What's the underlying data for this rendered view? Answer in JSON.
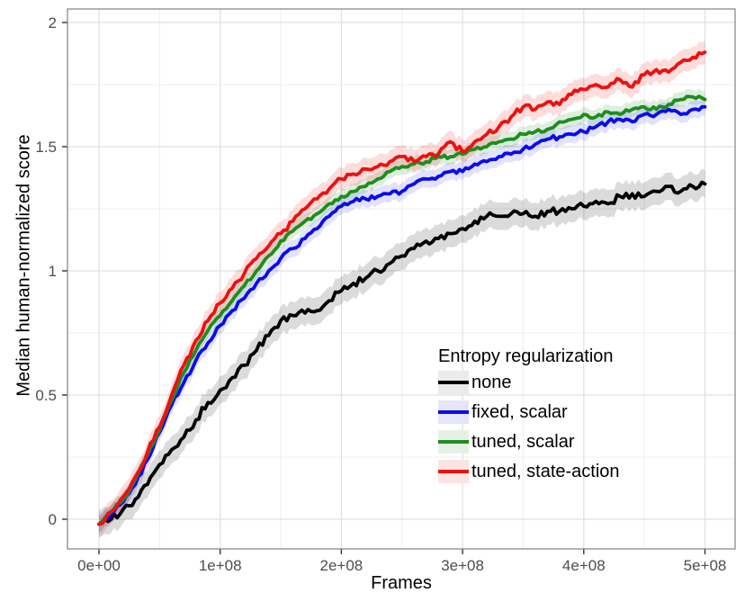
{
  "chart_data": {
    "type": "line",
    "title": "",
    "xlabel": "Frames",
    "ylabel": "Median human-normalized score",
    "x_multiplier": 100000000,
    "xlim_e8": [
      -0.26,
      5.25
    ],
    "ylim": [
      -0.12,
      2.05
    ],
    "grid": {
      "major": true,
      "minor": true
    },
    "x_ticks": {
      "values_e8": [
        0,
        1,
        2,
        3,
        4,
        5
      ],
      "labels": [
        "0e+00",
        "1e+08",
        "2e+08",
        "3e+08",
        "4e+08",
        "5e+08"
      ]
    },
    "y_ticks": {
      "values": [
        0,
        0.5,
        1,
        1.5,
        2
      ],
      "labels": [
        "0",
        "0.5",
        "1",
        "1.5",
        "2"
      ]
    },
    "legend": {
      "title": "Entropy regularization",
      "position": "inside bottom-right"
    },
    "colors": {
      "none": "#000000",
      "fixed_scalar": "#0b0bee",
      "tuned_scalar": "#1f8c1f",
      "tuned_state_action": "#ee1010",
      "grid_major": "#e0e0e0",
      "grid_minor": "#efefef",
      "axis_text": "#4d4d4d",
      "panel_border": "#808080"
    },
    "x_e8": [
      0,
      0.1,
      0.2,
      0.3,
      0.4,
      0.5,
      0.6,
      0.7,
      0.8,
      0.9,
      1,
      1.1,
      1.2,
      1.3,
      1.4,
      1.5,
      1.6,
      1.7,
      1.8,
      1.9,
      2,
      2.1,
      2.2,
      2.3,
      2.4,
      2.5,
      2.6,
      2.7,
      2.8,
      2.9,
      3,
      3.1,
      3.2,
      3.3,
      3.4,
      3.5,
      3.6,
      3.7,
      3.8,
      3.9,
      4,
      4.1,
      4.2,
      4.3,
      4.4,
      4.5,
      4.6,
      4.7,
      4.8,
      4.9,
      5
    ],
    "series": [
      {
        "id": "none",
        "name": "none",
        "color": "#000000",
        "band": 0.055,
        "band_color": "rgba(0,0,0,0.14)",
        "key_bg": "#ebebeb",
        "values": [
          -0.02,
          0.0,
          0.04,
          0.08,
          0.14,
          0.22,
          0.28,
          0.33,
          0.4,
          0.47,
          0.52,
          0.57,
          0.62,
          0.68,
          0.74,
          0.8,
          0.82,
          0.83,
          0.84,
          0.88,
          0.92,
          0.95,
          0.97,
          1.0,
          1.03,
          1.06,
          1.09,
          1.12,
          1.13,
          1.15,
          1.17,
          1.2,
          1.22,
          1.22,
          1.23,
          1.23,
          1.22,
          1.24,
          1.24,
          1.25,
          1.26,
          1.28,
          1.27,
          1.3,
          1.31,
          1.3,
          1.32,
          1.34,
          1.32,
          1.34,
          1.35
        ]
      },
      {
        "id": "fixed-scalar",
        "name": "fixed, scalar",
        "color": "#0b0bee",
        "band": 0.035,
        "band_color": "rgba(30,30,235,0.13)",
        "key_bg": "#e6e6f8",
        "values": [
          -0.02,
          0.02,
          0.07,
          0.14,
          0.24,
          0.35,
          0.46,
          0.55,
          0.64,
          0.71,
          0.78,
          0.84,
          0.89,
          0.95,
          1.0,
          1.05,
          1.09,
          1.13,
          1.17,
          1.22,
          1.26,
          1.28,
          1.29,
          1.3,
          1.31,
          1.32,
          1.35,
          1.37,
          1.38,
          1.4,
          1.4,
          1.43,
          1.44,
          1.46,
          1.47,
          1.49,
          1.51,
          1.53,
          1.54,
          1.55,
          1.56,
          1.58,
          1.6,
          1.61,
          1.6,
          1.63,
          1.63,
          1.65,
          1.63,
          1.65,
          1.66
        ]
      },
      {
        "id": "tuned-scalar",
        "name": "tuned, scalar",
        "color": "#1f8c1f",
        "band": 0.03,
        "band_color": "rgba(34,139,34,0.15)",
        "key_bg": "#e6f1e6",
        "values": [
          -0.02,
          0.03,
          0.08,
          0.16,
          0.26,
          0.36,
          0.48,
          0.59,
          0.68,
          0.76,
          0.82,
          0.88,
          0.94,
          1.0,
          1.06,
          1.12,
          1.16,
          1.2,
          1.23,
          1.27,
          1.3,
          1.32,
          1.34,
          1.37,
          1.4,
          1.42,
          1.43,
          1.44,
          1.46,
          1.46,
          1.47,
          1.49,
          1.5,
          1.52,
          1.53,
          1.55,
          1.56,
          1.57,
          1.6,
          1.61,
          1.63,
          1.62,
          1.64,
          1.63,
          1.65,
          1.66,
          1.65,
          1.67,
          1.69,
          1.7,
          1.69
        ]
      },
      {
        "id": "tuned-state-action",
        "name": "tuned, state-action",
        "color": "#ee1010",
        "band": 0.045,
        "band_color": "rgba(240,20,20,0.15)",
        "key_bg": "#fae4e4",
        "values": [
          -0.02,
          0.03,
          0.09,
          0.17,
          0.27,
          0.37,
          0.5,
          0.62,
          0.72,
          0.8,
          0.87,
          0.93,
          0.99,
          1.05,
          1.1,
          1.15,
          1.2,
          1.25,
          1.29,
          1.33,
          1.37,
          1.39,
          1.41,
          1.42,
          1.44,
          1.46,
          1.44,
          1.46,
          1.47,
          1.52,
          1.48,
          1.52,
          1.55,
          1.58,
          1.62,
          1.66,
          1.65,
          1.68,
          1.67,
          1.71,
          1.73,
          1.75,
          1.74,
          1.77,
          1.74,
          1.79,
          1.81,
          1.8,
          1.84,
          1.86,
          1.88
        ]
      }
    ]
  }
}
